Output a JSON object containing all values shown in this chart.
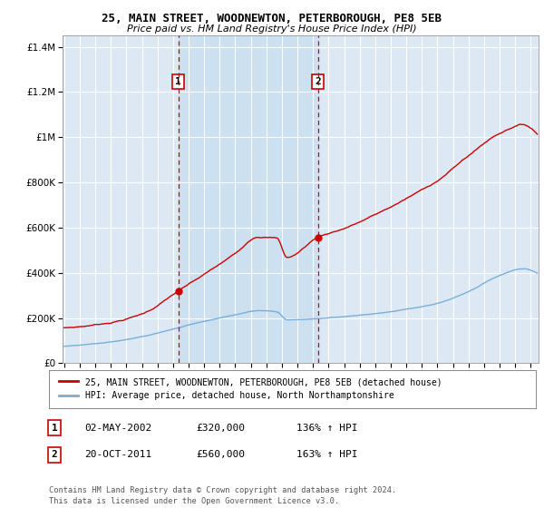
{
  "title1": "25, MAIN STREET, WOODNEWTON, PETERBOROUGH, PE8 5EB",
  "title2": "Price paid vs. HM Land Registry's House Price Index (HPI)",
  "background_color": "#ffffff",
  "plot_bg_color": "#dce9f5",
  "grid_color": "#ffffff",
  "red_line_color": "#cc0000",
  "blue_line_color": "#7aaed6",
  "marker1_date_idx": 88,
  "marker2_date_idx": 196,
  "marker1_label": "1",
  "marker2_label": "2",
  "marker1_value": 320000,
  "marker2_value": 560000,
  "sale1_text": "02-MAY-2002",
  "sale1_price": "£320,000",
  "sale1_hpi": "136% ↑ HPI",
  "sale2_text": "20-OCT-2011",
  "sale2_price": "£560,000",
  "sale2_hpi": "163% ↑ HPI",
  "legend1": "25, MAIN STREET, WOODNEWTON, PETERBOROUGH, PE8 5EB (detached house)",
  "legend2": "HPI: Average price, detached house, North Northamptonshire",
  "footnote": "Contains HM Land Registry data © Crown copyright and database right 2024.\nThis data is licensed under the Open Government Licence v3.0.",
  "ytick_labels": [
    "£0",
    "£200K",
    "£400K",
    "£600K",
    "£800K",
    "£1M",
    "£1.2M",
    "£1.4M"
  ],
  "ytick_values": [
    0,
    200000,
    400000,
    600000,
    800000,
    1000000,
    1200000,
    1400000
  ],
  "ylim": [
    0,
    1450000
  ],
  "xlim_start": 1994.9,
  "xlim_end": 2025.5
}
